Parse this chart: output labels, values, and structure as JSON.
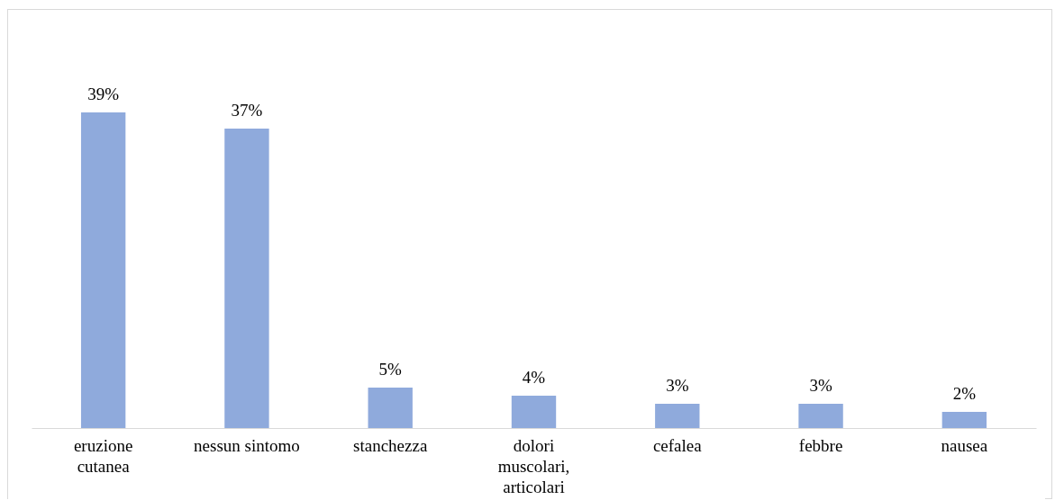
{
  "chart_data": {
    "type": "bar",
    "categories": [
      "eruzione cutanea",
      "nessun sintomo",
      "stanchezza",
      "dolori muscolari, articolari",
      "cefalea",
      "febbre",
      "nausea"
    ],
    "values": [
      39,
      37,
      5,
      4,
      3,
      3,
      2
    ],
    "value_labels": [
      "39%",
      "37%",
      "5%",
      "4%",
      "3%",
      "3%",
      "2%"
    ],
    "color": "#8faadc"
  }
}
